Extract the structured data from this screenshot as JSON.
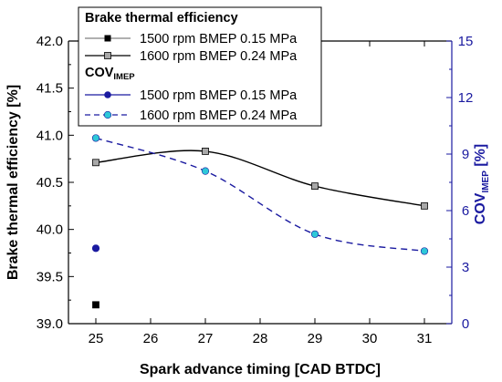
{
  "chart_data": {
    "type": "line",
    "xlabel": "Spark advance timing [CAD BTDC]",
    "ylabel_left": "Brake thermal efficiency [%]",
    "ylabel_right_main": "COV",
    "ylabel_right_sub": "IMEP",
    "ylabel_right_suffix": " [%]",
    "xlim": [
      24.5,
      31.5
    ],
    "ylim_left": [
      39.0,
      42.0
    ],
    "ylim_right": [
      0,
      15
    ],
    "xticks": [
      25,
      26,
      27,
      28,
      29,
      30,
      31
    ],
    "yticks_left": [
      "39.0",
      "39.5",
      "40.0",
      "40.5",
      "41.0",
      "41.5",
      "42.0"
    ],
    "yticks_right": [
      "0",
      "3",
      "6",
      "9",
      "12",
      "15"
    ],
    "legend": {
      "group1_title": "Brake thermal efficiency",
      "group2_title_main": "COV",
      "group2_title_sub": "IMEP",
      "entries": [
        {
          "label": "1500 rpm BMEP 0.15 MPa"
        },
        {
          "label": "1600 rpm BMEP 0.24 MPa"
        },
        {
          "label": "1500 rpm BMEP 0.15 MPa"
        },
        {
          "label": "1600 rpm BMEP 0.24 MPa"
        }
      ]
    },
    "series": [
      {
        "group": "Brake thermal efficiency",
        "label": "1500 rpm BMEP 0.15 MPa",
        "axis": "left",
        "marker": "square",
        "color": "#000000",
        "fill": "#000000",
        "line": "none",
        "x": [
          25
        ],
        "y": [
          39.2
        ]
      },
      {
        "group": "Brake thermal efficiency",
        "label": "1600 rpm BMEP 0.24 MPa",
        "axis": "left",
        "marker": "square",
        "color": "#000000",
        "fill": "#a8a8a8",
        "line": "solid",
        "x": [
          25,
          27,
          29,
          31
        ],
        "y": [
          40.71,
          40.83,
          40.46,
          40.25
        ]
      },
      {
        "group": "COV_IMEP",
        "label": "1500 rpm BMEP 0.15 MPa",
        "axis": "right",
        "marker": "circle",
        "color": "#1a1aa0",
        "fill": "#1a1aa0",
        "line": "none",
        "x": [
          25
        ],
        "y": [
          4.0
        ]
      },
      {
        "group": "COV_IMEP",
        "label": "1600 rpm BMEP 0.24 MPa",
        "axis": "right",
        "marker": "circle",
        "color": "#1a1aa0",
        "fill": "#2ec8d8",
        "line": "dashed",
        "x": [
          25,
          27,
          29,
          31
        ],
        "y": [
          9.85,
          8.1,
          4.75,
          3.85
        ]
      }
    ],
    "colors": {
      "left_axis": "#000000",
      "right_axis": "#1a1aa0",
      "cov_fill": "#2ec8d8",
      "bte_fill": "#a8a8a8"
    }
  }
}
